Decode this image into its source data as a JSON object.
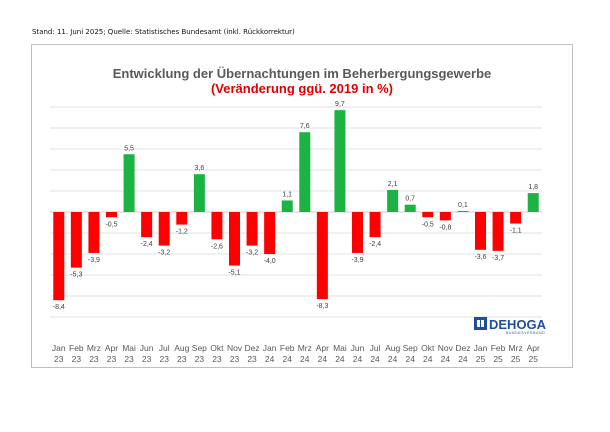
{
  "source_note": "Stand: 11. Juni 2025; Quelle: Statistisches Bundesamt (inkl. Rückkorrektur)",
  "logo": {
    "name": "DEHOGA",
    "sub": "BUNDESVERBAND"
  },
  "colors": {
    "positive": "#1db244",
    "negative": "#ff0000",
    "grid": "#d9d9d9",
    "axis": "#bfbfbf"
  },
  "chart_data": {
    "type": "bar",
    "title": "Entwicklung der Übernachtungen im Beherbergungsgewerbe",
    "subtitle": "(Veränderung ggü. 2019 in %)",
    "xlabel": "",
    "ylabel": "",
    "ylim": [
      -10,
      12
    ],
    "grid": true,
    "categories": [
      {
        "m": "Jan",
        "y": "23"
      },
      {
        "m": "Feb",
        "y": "23"
      },
      {
        "m": "Mrz",
        "y": "23"
      },
      {
        "m": "Apr",
        "y": "23"
      },
      {
        "m": "Mai",
        "y": "23"
      },
      {
        "m": "Jun",
        "y": "23"
      },
      {
        "m": "Jul",
        "y": "23"
      },
      {
        "m": "Aug",
        "y": "23"
      },
      {
        "m": "Sep",
        "y": "23"
      },
      {
        "m": "Okt",
        "y": "23"
      },
      {
        "m": "Nov",
        "y": "23"
      },
      {
        "m": "Dez",
        "y": "23"
      },
      {
        "m": "Jan",
        "y": "24"
      },
      {
        "m": "Feb",
        "y": "24"
      },
      {
        "m": "Mrz",
        "y": "24"
      },
      {
        "m": "Apr",
        "y": "24"
      },
      {
        "m": "Mai",
        "y": "24"
      },
      {
        "m": "Jun",
        "y": "24"
      },
      {
        "m": "Jul",
        "y": "24"
      },
      {
        "m": "Aug",
        "y": "24"
      },
      {
        "m": "Sep",
        "y": "24"
      },
      {
        "m": "Okt",
        "y": "24"
      },
      {
        "m": "Nov",
        "y": "24"
      },
      {
        "m": "Dez",
        "y": "24"
      },
      {
        "m": "Jan",
        "y": "25"
      },
      {
        "m": "Feb",
        "y": "25"
      },
      {
        "m": "Mrz",
        "y": "25"
      },
      {
        "m": "Apr",
        "y": "25"
      }
    ],
    "values": [
      -8.4,
      -5.3,
      -3.9,
      -0.5,
      5.5,
      -2.4,
      -3.2,
      -1.2,
      3.6,
      -2.6,
      -5.1,
      -3.2,
      -4.0,
      1.1,
      7.6,
      -8.3,
      9.7,
      -3.9,
      -2.4,
      2.1,
      0.7,
      -0.5,
      -0.8,
      0.1,
      -3.6,
      -3.7,
      -1.1,
      1.8
    ],
    "value_labels": [
      "-8,4",
      "-5,3",
      "-3,9",
      "-0,5",
      "5,5",
      "-2,4",
      "-3,2",
      "-1,2",
      "3,6",
      "-2,6",
      "-5,1",
      "-3,2",
      "-4,0",
      "1,1",
      "7,6",
      "-8,3",
      "9,7",
      "-3,9",
      "-2,4",
      "2,1",
      "0,7",
      "-0,5",
      "-0,8",
      "0,1",
      "-3,6",
      "-3,7",
      "-1,1",
      "1,8"
    ]
  }
}
